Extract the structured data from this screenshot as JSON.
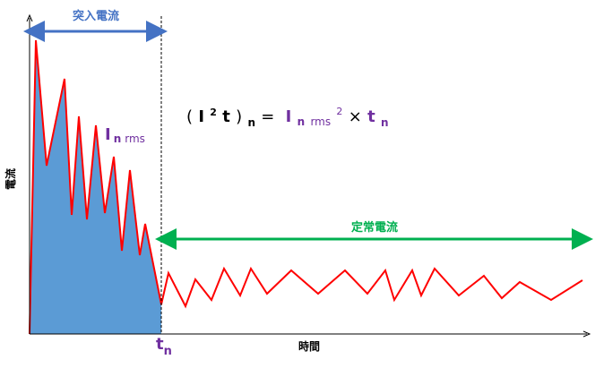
{
  "labels": {
    "inrush": "突入電流",
    "steady": "定常電流",
    "y_axis": "電流",
    "x_axis": "時間"
  },
  "tn": {
    "main": "t",
    "sub": "n"
  },
  "irms": {
    "main": "I",
    "sub": "n",
    "sub2": "rms"
  },
  "formula": [
    "(",
    "I",
    "2",
    "t",
    ")",
    "n",
    "=",
    "I",
    "n",
    "rms",
    "2",
    "×",
    "t",
    "n"
  ]
}
